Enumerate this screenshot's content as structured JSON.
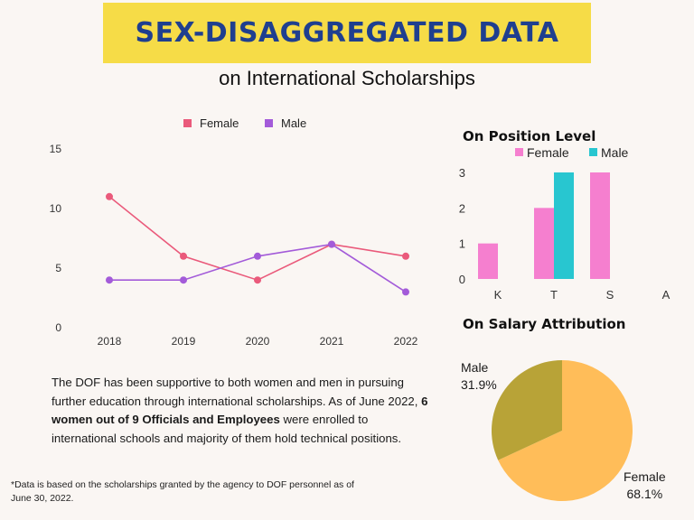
{
  "header": {
    "title": "SEX-DISAGGREGATED DATA",
    "subtitle": "on International Scholarships"
  },
  "paragraph": {
    "part1": "The DOF has been supportive to both women and men in pursuing further education through international scholarships. As of June 2022, ",
    "bold": "6 women out of 9 Officials and Employees",
    "part2": " were enrolled to international schools and majority of them hold technical positions."
  },
  "footnote": "*Data is based on the scholarships granted by the agency to DOF personnel as of June 30, 2022.",
  "colors": {
    "title_banner": "#f6dc47",
    "title_text": "#1f3f8f",
    "line_female": "#ea5a7b",
    "line_male": "#a35bd9",
    "bar_female": "#f57fcf",
    "bar_male": "#28c6d0",
    "pie_female": "#ffbd59",
    "pie_male": "#b8a337"
  },
  "chart_data": [
    {
      "type": "line",
      "x": [
        "2018",
        "2019",
        "2020",
        "2021",
        "2022"
      ],
      "series": [
        {
          "name": "Female",
          "values": [
            11,
            6,
            4,
            7,
            6
          ]
        },
        {
          "name": "Male",
          "values": [
            4,
            4,
            6,
            7,
            3
          ]
        }
      ],
      "yticks": [
        "0",
        "5",
        "10",
        "15"
      ],
      "ylim": [
        0,
        15
      ],
      "legend": "top",
      "grid": false
    },
    {
      "type": "bar",
      "title": "On Position Level",
      "categories": [
        "K",
        "T",
        "S",
        "A"
      ],
      "series": [
        {
          "name": "Female",
          "values": [
            1,
            2,
            3,
            0
          ]
        },
        {
          "name": "Male",
          "values": [
            0,
            3,
            0,
            0
          ]
        }
      ],
      "yticks": [
        "0",
        "1",
        "2",
        "3"
      ],
      "ylim": [
        0,
        3
      ],
      "legend": "top",
      "grid": false
    },
    {
      "type": "pie",
      "title": "On Salary Attribution",
      "slices": [
        {
          "name": "Male",
          "value": 31.9,
          "label": "31.9%"
        },
        {
          "name": "Female",
          "value": 68.1,
          "label": "68.1%"
        }
      ]
    }
  ]
}
